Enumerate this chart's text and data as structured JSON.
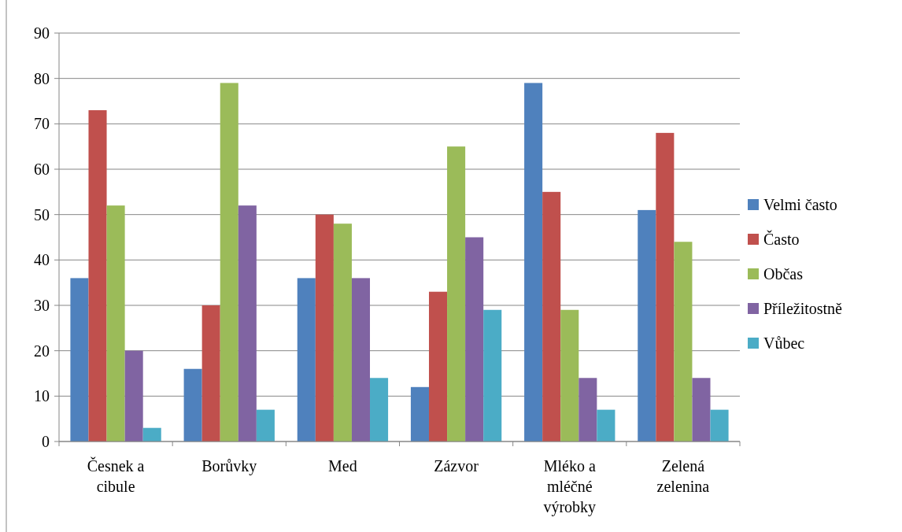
{
  "chart_data": {
    "type": "bar",
    "categories": [
      "Česnek a cibule",
      "Borůvky",
      "Med",
      "Zázvor",
      "Mléko a mléčné výrobky",
      "Zelená zelenina"
    ],
    "series": [
      {
        "name": "Velmi často",
        "color": "#4f81bd",
        "values": [
          36,
          16,
          36,
          12,
          79,
          51
        ]
      },
      {
        "name": "Často",
        "color": "#c0504d",
        "values": [
          73,
          30,
          50,
          33,
          55,
          68
        ]
      },
      {
        "name": "Občas",
        "color": "#9bbb59",
        "values": [
          52,
          79,
          48,
          65,
          29,
          44
        ]
      },
      {
        "name": "Příležitostně",
        "color": "#8064a2",
        "values": [
          20,
          52,
          36,
          45,
          14,
          14
        ]
      },
      {
        "name": "Vůbec",
        "color": "#4bacc6",
        "values": [
          3,
          7,
          14,
          29,
          7,
          7
        ]
      }
    ],
    "ylim": [
      0,
      90
    ],
    "yticks": [
      0,
      10,
      20,
      30,
      40,
      50,
      60,
      70,
      80,
      90
    ],
    "grid": "y",
    "legend": "right"
  }
}
